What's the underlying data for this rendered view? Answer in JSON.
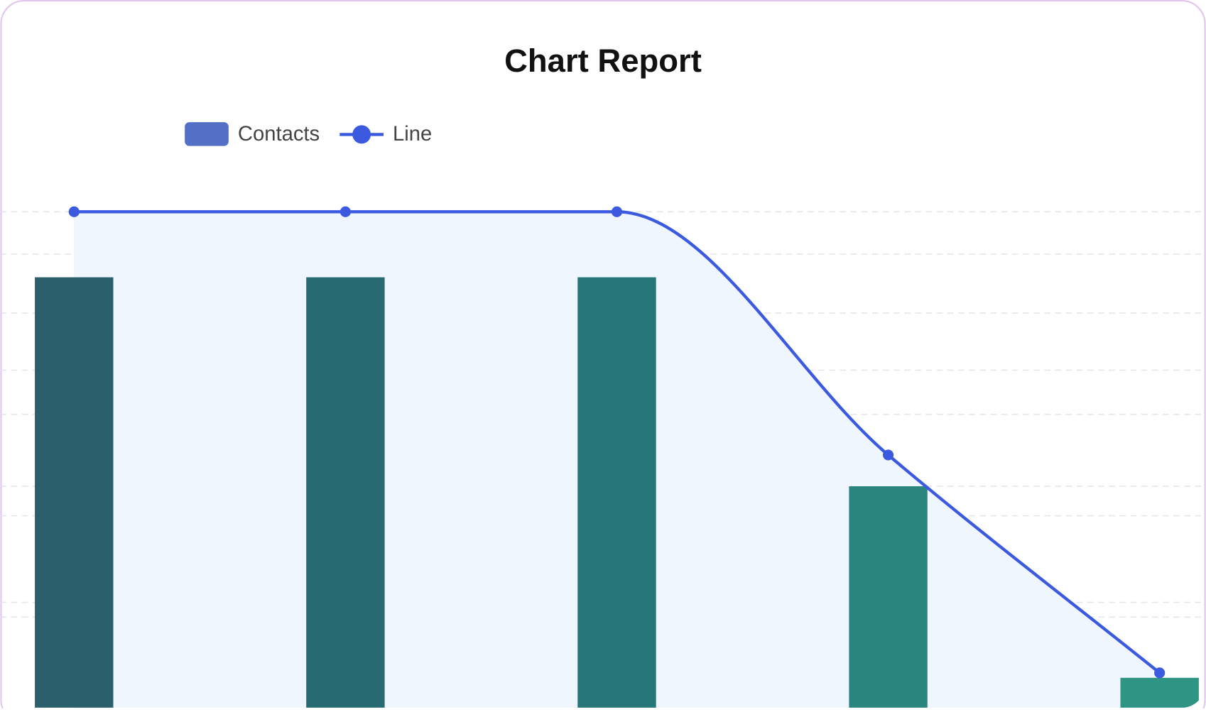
{
  "chart_data": {
    "type": "combo",
    "title": "Chart Report",
    "categories": [
      null,
      null,
      null,
      null,
      null
    ],
    "series": [
      {
        "name": "Contacts",
        "type": "bar",
        "color": "#5470c6",
        "bar_colors": [
          "#2b5f6b",
          "#276a72",
          "#26767a",
          "#2a857e",
          "#2e9484"
        ],
        "values": [
          3.8,
          3.8,
          3.8,
          2,
          0.35
        ]
      },
      {
        "name": "Line",
        "type": "line",
        "axis": "y2",
        "color": "#3b5ae0",
        "area_color": "#f0f6fe",
        "values": [
          5,
          5,
          5,
          2.6,
          0.45
        ]
      }
    ],
    "ylim": [
      0,
      4.6
    ],
    "yticks": [
      1,
      2,
      3,
      4
    ],
    "y2lim": [
      0,
      5.27
    ],
    "y2ticks": [
      1,
      2,
      3,
      4,
      5
    ],
    "grid": true,
    "tick_labels": false,
    "legend": "top-left"
  }
}
